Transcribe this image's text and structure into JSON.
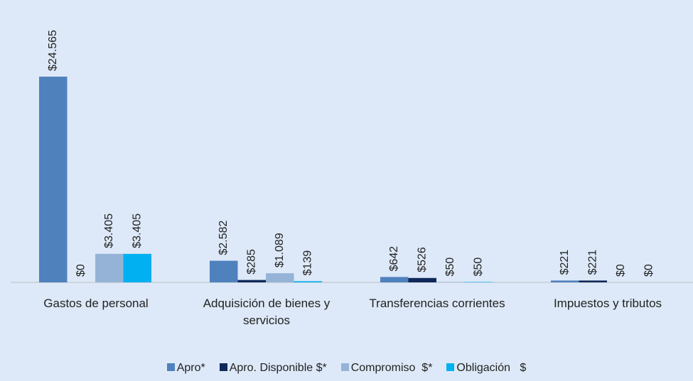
{
  "chart_data": {
    "type": "bar",
    "categories": [
      "Gastos de personal",
      "Adquisición de bienes y servicios",
      "Transferencias corrientes",
      "Impuestos y tributos"
    ],
    "series": [
      {
        "name": "Apro*",
        "color": "#4f81bd",
        "values": [
          24565,
          2582,
          642,
          221
        ],
        "value_labels": [
          "$24.565",
          "$2.582",
          "$642",
          "$221"
        ]
      },
      {
        "name": "Apro. Disponible $*",
        "color": "#10295a",
        "values": [
          0,
          285,
          526,
          221
        ],
        "value_labels": [
          "$0",
          "$285",
          "$526",
          "$221"
        ]
      },
      {
        "name": "Compromiso  $*",
        "color": "#95b3d7",
        "values": [
          3405,
          1089,
          50,
          0
        ],
        "value_labels": [
          "$3.405",
          "$1.089",
          "$50",
          "$0"
        ]
      },
      {
        "name": "Obligación   $",
        "color": "#00b0f0",
        "values": [
          3405,
          139,
          50,
          0
        ],
        "value_labels": [
          "$3.405",
          "$139",
          "$50",
          "$0"
        ]
      }
    ],
    "legend": "bottom"
  }
}
